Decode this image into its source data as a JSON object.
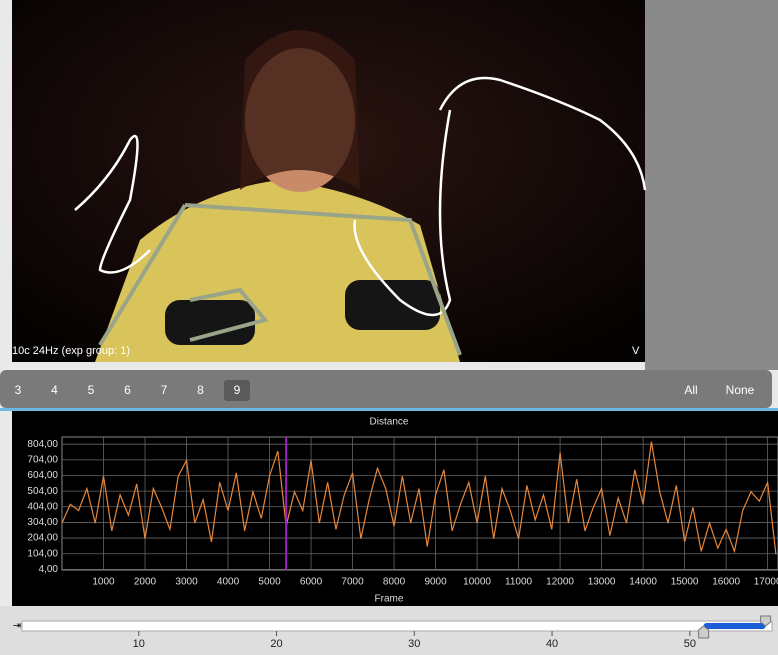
{
  "video": {
    "label": "10c 24Hz (exp group: 1)",
    "corner": "V"
  },
  "tabs": {
    "items": [
      "3",
      "4",
      "5",
      "6",
      "7",
      "8",
      "9"
    ],
    "active": 6,
    "buttons": [
      "All",
      "None"
    ]
  },
  "chart_data": {
    "type": "line",
    "title": "Distance",
    "x_label": "Frame",
    "x": [
      0,
      200,
      400,
      600,
      800,
      1000,
      1200,
      1400,
      1600,
      1800,
      2000,
      2200,
      2400,
      2600,
      2800,
      3000,
      3200,
      3400,
      3600,
      3800,
      4000,
      4200,
      4400,
      4600,
      4800,
      5000,
      5200,
      5400,
      5600,
      5800,
      6000,
      6200,
      6400,
      6600,
      6800,
      7000,
      7200,
      7400,
      7600,
      7800,
      8000,
      8200,
      8400,
      8600,
      8800,
      9000,
      9200,
      9400,
      9600,
      9800,
      10000,
      10200,
      10400,
      10600,
      10800,
      11000,
      11200,
      11400,
      11600,
      11800,
      12000,
      12200,
      12400,
      12600,
      12800,
      13000,
      13200,
      13400,
      13600,
      13800,
      14000,
      14200,
      14400,
      14600,
      14800,
      15000,
      15200,
      15400,
      15600,
      15800,
      16000,
      16200,
      16400,
      16600,
      16800,
      17000,
      17200
    ],
    "series": [
      {
        "color": "#e8873a",
        "values": [
          300,
          420,
          380,
          520,
          300,
          600,
          250,
          480,
          350,
          550,
          200,
          520,
          400,
          260,
          600,
          700,
          300,
          450,
          180,
          560,
          380,
          620,
          250,
          500,
          330,
          600,
          760,
          280,
          500,
          380,
          700,
          300,
          560,
          260,
          480,
          620,
          200,
          450,
          650,
          520,
          280,
          600,
          300,
          520,
          150,
          480,
          640,
          250,
          420,
          560,
          300,
          600,
          200,
          520,
          380,
          200,
          540,
          320,
          480,
          260,
          750,
          300,
          580,
          250,
          400,
          520,
          220,
          460,
          300,
          640,
          420,
          820,
          500,
          300,
          540,
          180,
          400,
          120,
          300,
          140,
          260,
          120,
          380,
          500,
          440,
          560,
          100
        ]
      }
    ],
    "cursor": 5400,
    "cursor_color": "#a020c0",
    "xlim": [
      0,
      17250
    ],
    "ylim": [
      0,
      850
    ],
    "xticks": [
      1000,
      2000,
      3000,
      4000,
      5000,
      6000,
      7000,
      8000,
      9000,
      10000,
      11000,
      12000,
      13000,
      14000,
      15000,
      16000,
      17000
    ],
    "yticks": [
      {
        "value": 4,
        "label": "4,00"
      },
      {
        "value": 104,
        "label": "104,00"
      },
      {
        "value": 204,
        "label": "204,00"
      },
      {
        "value": 304,
        "label": "304,00"
      },
      {
        "value": 404,
        "label": "404,00"
      },
      {
        "value": 504,
        "label": "504,00"
      },
      {
        "value": 604,
        "label": "604,00"
      },
      {
        "value": 704,
        "label": "704,00"
      },
      {
        "value": 804,
        "label": "804,00"
      }
    ],
    "grid": true
  },
  "timeline": {
    "lim": [
      0,
      56.4
    ],
    "ticks": [
      10,
      20,
      30,
      40,
      50
    ],
    "selection": [
      51,
      55.5
    ]
  }
}
